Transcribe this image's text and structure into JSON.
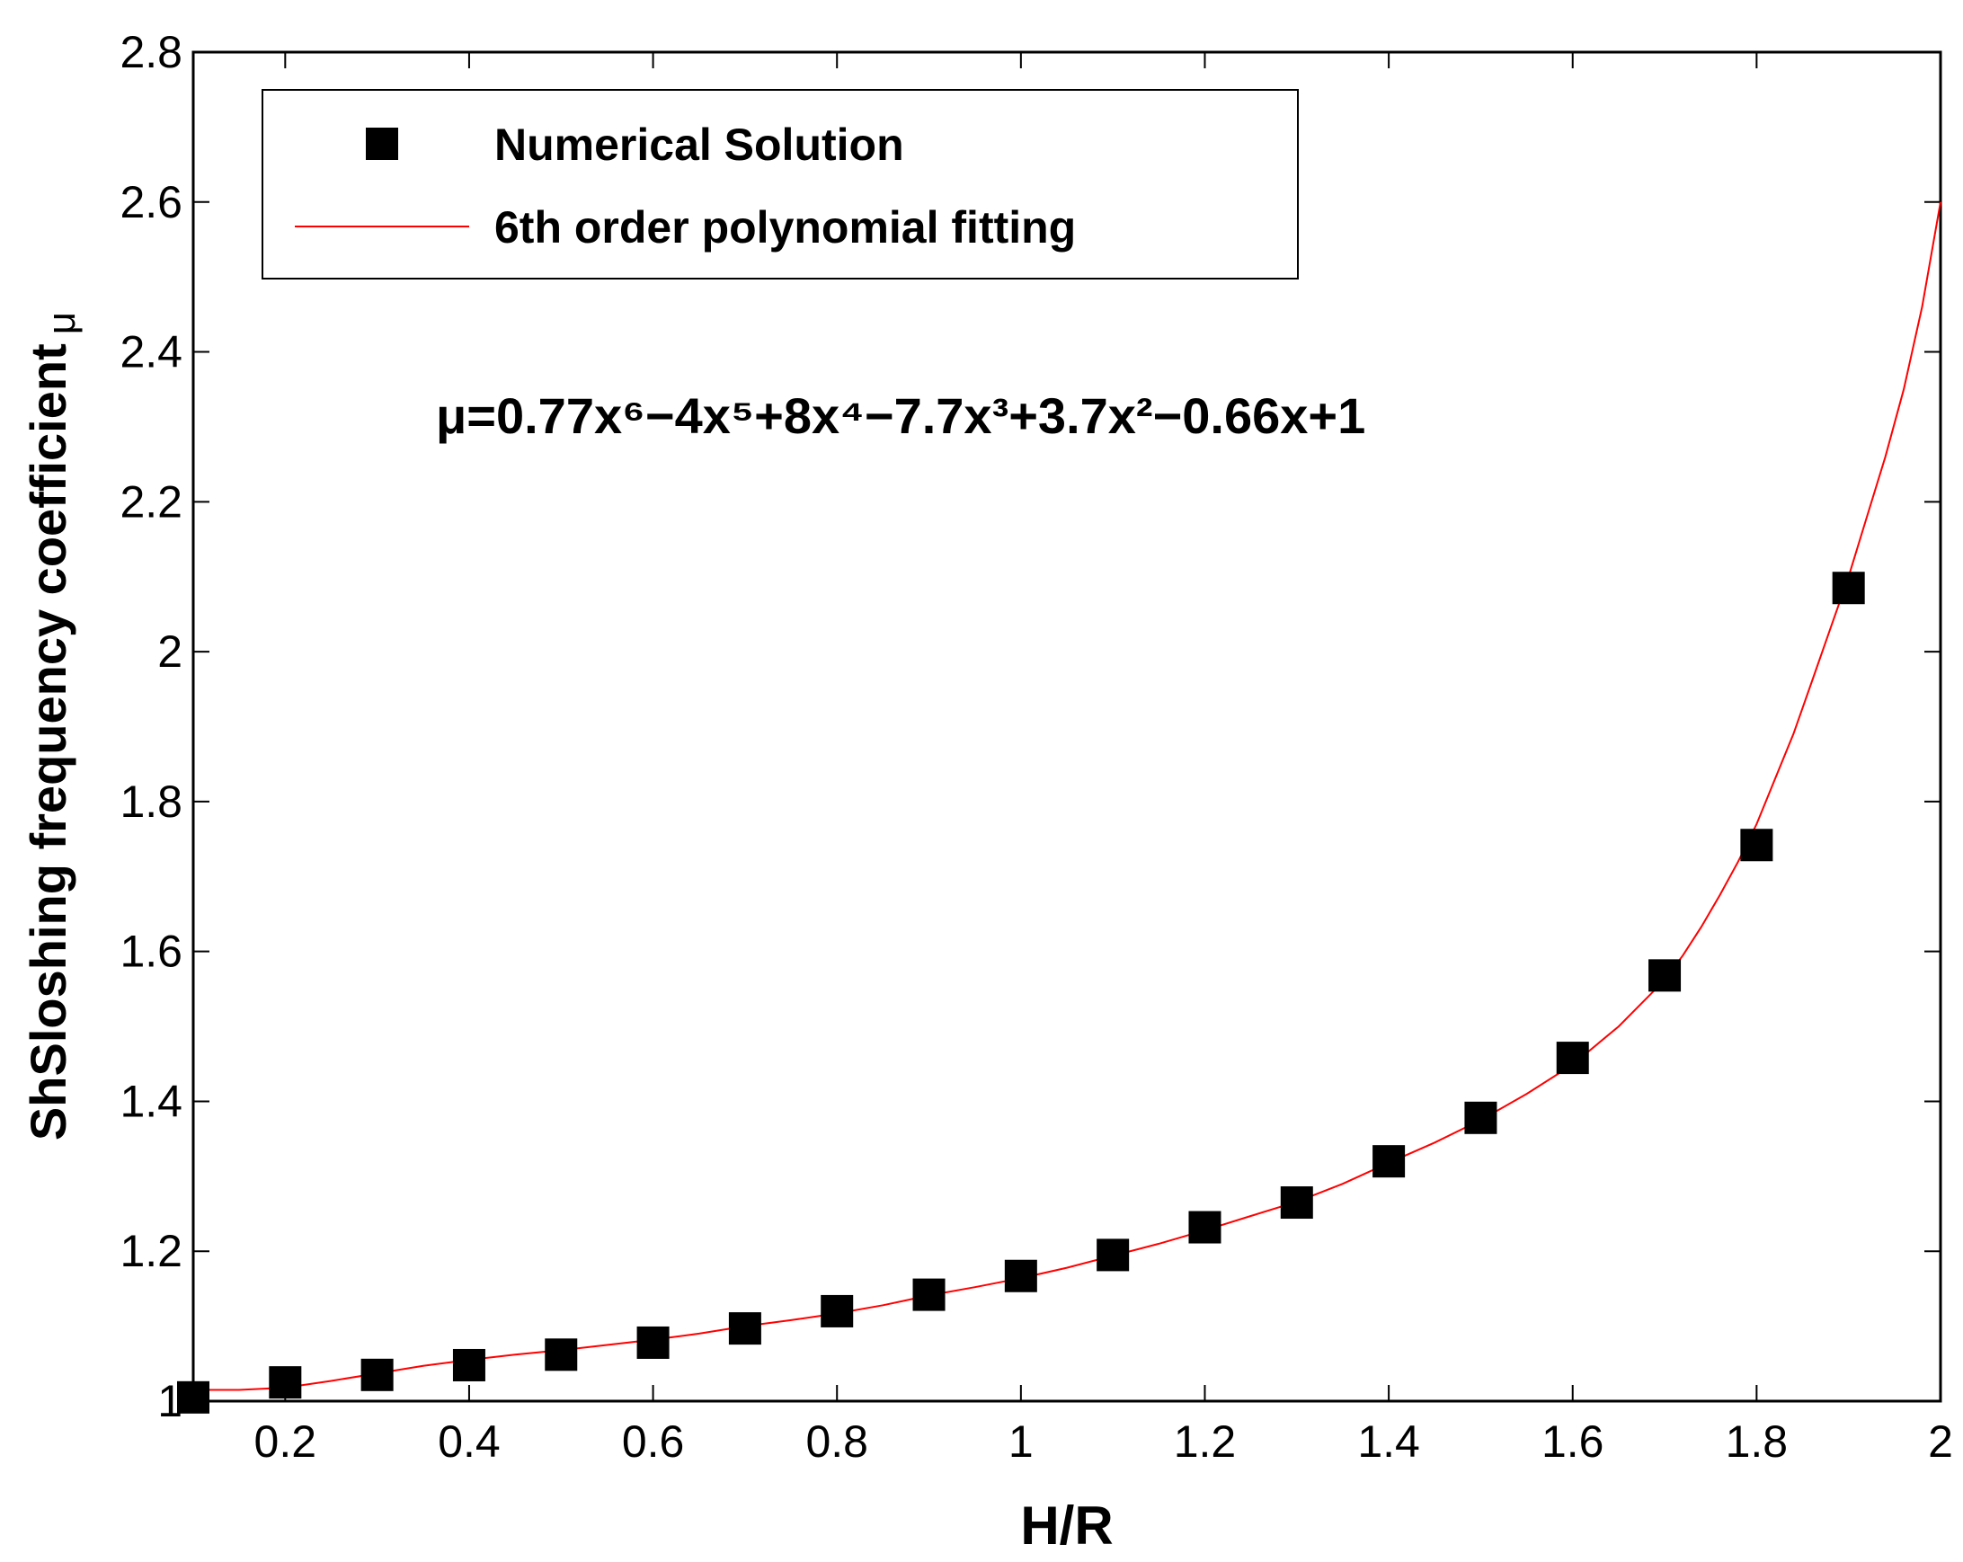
{
  "chart_data": {
    "type": "scatter",
    "title": "",
    "xlabel": "H/R",
    "ylabel": "ShSloshing frequency coefficient",
    "ylabel_symbol": "μ",
    "xlim": [
      0.1,
      2.0
    ],
    "ylim": [
      1.0,
      2.8
    ],
    "xticks": [
      0.2,
      0.4,
      0.6,
      0.8,
      1.0,
      1.2,
      1.4,
      1.6,
      1.8,
      2.0
    ],
    "xtick_labels": [
      "0.2",
      "0.4",
      "0.6",
      "0.8",
      "1",
      "1.2",
      "1.4",
      "1.6",
      "1.8",
      "2"
    ],
    "yticks": [
      1.0,
      1.2,
      1.4,
      1.6,
      1.8,
      2.0,
      2.2,
      2.4,
      2.6,
      2.8
    ],
    "ytick_labels": [
      "1",
      "1.2",
      "1.4",
      "1.6",
      "1.8",
      "2",
      "2.2",
      "2.4",
      "2.6",
      "2.8"
    ],
    "grid": false,
    "legend_position": "top-left",
    "series": [
      {
        "name": "Numerical Solution",
        "kind": "markers",
        "marker": "square",
        "color": "#000000",
        "x": [
          0.1,
          0.2,
          0.3,
          0.4,
          0.5,
          0.6,
          0.7,
          0.8,
          0.9,
          1.0,
          1.1,
          1.2,
          1.3,
          1.4,
          1.5,
          1.6,
          1.7,
          1.8,
          1.9
        ],
        "y": [
          1.005,
          1.025,
          1.035,
          1.048,
          1.062,
          1.078,
          1.097,
          1.12,
          1.142,
          1.167,
          1.195,
          1.232,
          1.265,
          1.32,
          1.378,
          1.458,
          1.568,
          1.742,
          2.085
        ]
      },
      {
        "name": "6th order polynomial fitting",
        "kind": "line",
        "color": "#ff0000",
        "x": [
          0.1,
          0.15,
          0.2,
          0.25,
          0.3,
          0.35,
          0.4,
          0.45,
          0.5,
          0.55,
          0.6,
          0.65,
          0.7,
          0.75,
          0.8,
          0.85,
          0.9,
          0.95,
          1.0,
          1.05,
          1.1,
          1.15,
          1.2,
          1.25,
          1.3,
          1.35,
          1.4,
          1.45,
          1.5,
          1.55,
          1.6,
          1.65,
          1.7,
          1.72,
          1.74,
          1.76,
          1.78,
          1.8,
          1.82,
          1.84,
          1.86,
          1.88,
          1.9,
          1.92,
          1.94,
          1.96,
          1.98,
          2.0
        ],
        "y": [
          1.015,
          1.015,
          1.018,
          1.027,
          1.037,
          1.047,
          1.055,
          1.062,
          1.068,
          1.075,
          1.082,
          1.09,
          1.1,
          1.108,
          1.117,
          1.128,
          1.141,
          1.152,
          1.164,
          1.178,
          1.194,
          1.21,
          1.228,
          1.247,
          1.266,
          1.29,
          1.318,
          1.345,
          1.375,
          1.41,
          1.449,
          1.5,
          1.562,
          1.595,
          1.633,
          1.675,
          1.72,
          1.77,
          1.83,
          1.89,
          1.96,
          2.03,
          2.1,
          2.18,
          2.26,
          2.35,
          2.46,
          2.6
        ]
      }
    ],
    "annotations": [
      {
        "text": "μ=0.77x⁶−4x⁵+8x⁴−7.7x³+3.7x²−0.66x+1"
      }
    ]
  }
}
